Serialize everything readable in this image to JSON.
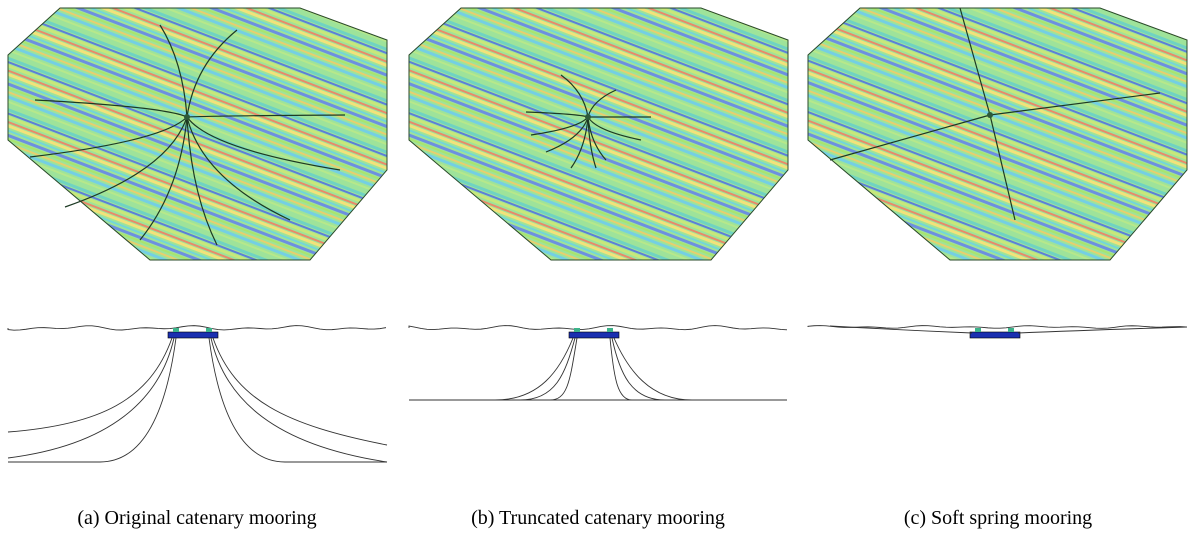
{
  "captions": [
    "(a) Original catenary mooring",
    "(b) Truncated catenary mooring",
    "(c) Soft spring mooring"
  ]
}
